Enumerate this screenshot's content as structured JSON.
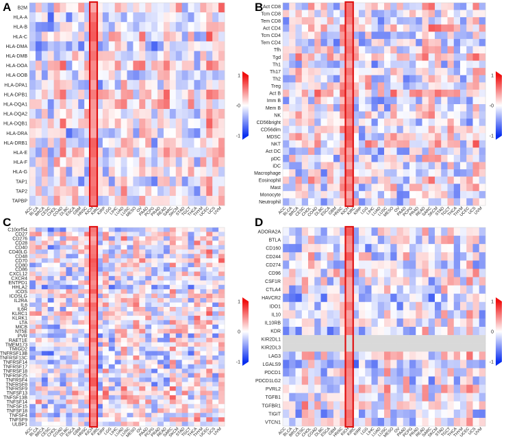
{
  "figure": {
    "colors": {
      "low": "#0a2ff0",
      "mid": "#ffffff",
      "high": "#f01010",
      "na": "#d9d9d9",
      "highlight": "#e01010",
      "grid": "#ffffff"
    }
  },
  "chart_data": [
    {
      "type": "heatmap",
      "panel": "A",
      "title": "",
      "rows": [
        "B2M",
        "HLA-A",
        "HLA-B",
        "HLA-C",
        "HLA-DMA",
        "HLA-DMB",
        "HLA-DOA",
        "HLA-DOB",
        "HLA-DPA1",
        "HLA-DPB1",
        "HLA-DQA1",
        "HLA-DQA2",
        "HLA-DQB1",
        "HLA-DRA",
        "HLA-DRB1",
        "HLA-E",
        "HLA-F",
        "HLA-G",
        "TAP1",
        "TAP2",
        "TAPBP"
      ],
      "columns": [
        "ACC",
        "BLCA",
        "BRCA",
        "CESC",
        "CHOL",
        "COAD",
        "DLBC",
        "ESCA",
        "GBM",
        "HNSC",
        "KICH",
        "KIRC",
        "KIRP",
        "LGG",
        "LIHC",
        "LUAD",
        "LUSC",
        "MESO",
        "OV",
        "PAAD",
        "PCPG",
        "PRAD",
        "READ",
        "SARC",
        "SKCM",
        "STAD",
        "TGCT",
        "THCA",
        "THYM",
        "UCEC",
        "UCS",
        "UVM"
      ],
      "highlight_column": "KICH",
      "colorbar": {
        "ticks": [
          "1",
          "-0",
          "-1"
        ],
        "range": [
          -1,
          1
        ]
      },
      "seed": 11
    },
    {
      "type": "heatmap",
      "panel": "B",
      "title": "",
      "rows": [
        "Act CD8",
        "Tcm CD8",
        "Tem CD8",
        "Act CD4",
        "Tcm CD4",
        "Tem CD4",
        "Tfh",
        "Tgd",
        "Th1",
        "Th17",
        "Th2",
        "Treg",
        "Act B",
        "Imm B",
        "Mem B",
        "NK",
        "CD56bright",
        "CD56dim",
        "MDSC",
        "NKT",
        "Act DC",
        "pDC",
        "iDC",
        "Macrophage",
        "Eosinophil",
        "Mast",
        "Monocyte",
        "Neutrophil"
      ],
      "columns": [
        "ACC",
        "BLCA",
        "BRCA",
        "CESC",
        "CHOL",
        "COAD",
        "DLBC",
        "ESCA",
        "GBM",
        "HNSC",
        "KICH",
        "KIRC",
        "KIRP",
        "LGG",
        "LIHC",
        "LUAD",
        "LUSC",
        "MESO",
        "OV",
        "PAAD",
        "PCPG",
        "PRAD",
        "READ",
        "SARC",
        "SKCM",
        "STAD",
        "TGCT",
        "THCA",
        "THYM",
        "UCEC",
        "UCS",
        "UVM"
      ],
      "highlight_column": "KICH",
      "colorbar": {
        "ticks": [
          "1",
          "-0",
          "-1"
        ],
        "range": [
          -1,
          1
        ]
      },
      "seed": 23
    },
    {
      "type": "heatmap",
      "panel": "C",
      "title": "",
      "rows": [
        "C10orf54",
        "CD27",
        "CD276",
        "CD28",
        "CD40",
        "CD40LG",
        "CD48",
        "CD70",
        "CD80",
        "CD86",
        "CXCL12",
        "CXCR4",
        "ENTPD1",
        "HHLA2",
        "ICOS",
        "ICOSLG",
        "IL2RA",
        "IL6",
        "IL6R",
        "KLRC1",
        "KLRK1",
        "LTA",
        "MICB",
        "NT5E",
        "PVR",
        "RAET1E",
        "TMEM173",
        "TMIGD2",
        "TNFRSF13B",
        "TNFRSF13C",
        "TNFRSF14",
        "TNFRSF17",
        "TNFRSF18",
        "TNFRSF25",
        "TNFRSF4",
        "TNFRSF8",
        "TNFRSF9",
        "TNFSF13",
        "TNFSF13B",
        "TNFSF14",
        "TNFSF15",
        "TNFSF18",
        "TNFSF4",
        "TNFSF9",
        "ULBP1"
      ],
      "columns": [
        "ACC",
        "BLCA",
        "BRCA",
        "CESC",
        "CHOL",
        "COAD",
        "DLBC",
        "ESCA",
        "GBM",
        "HNSC",
        "KICH",
        "KIRC",
        "KIRP",
        "LGG",
        "LIHC",
        "LUAD",
        "LUSC",
        "MESO",
        "OV",
        "PAAD",
        "PCPG",
        "PRAD",
        "READ",
        "SARC",
        "SKCM",
        "STAD",
        "TGCT",
        "THCA",
        "THYM",
        "UCEC",
        "UCS",
        "UVM"
      ],
      "highlight_column": "KICH",
      "colorbar": {
        "ticks": [
          "1",
          "0",
          "-1"
        ],
        "range": [
          -1,
          1
        ]
      },
      "seed": 37
    },
    {
      "type": "heatmap",
      "panel": "D",
      "title": "",
      "rows": [
        "ADORA2A",
        "BTLA",
        "CD160",
        "CD244",
        "CD274",
        "CD96",
        "CSF1R",
        "CTLA4",
        "HAVCR2",
        "IDO1",
        "IL10",
        "IL10RB",
        "KDR",
        "KIR2DL1",
        "KIR2DL3",
        "LAG3",
        "LGALS9",
        "PDCD1",
        "PDCD1LG2",
        "PVRL2",
        "TGFB1",
        "TGFBR1",
        "TIGIT",
        "VTCN1"
      ],
      "columns": [
        "ACC",
        "BLCA",
        "BRCA",
        "CESC",
        "CHOL",
        "COAD",
        "DLBC",
        "ESCA",
        "GBM",
        "HNSC",
        "KICH",
        "KIRC",
        "KIRP",
        "LGG",
        "LIHC",
        "LUAD",
        "LUSC",
        "MESO",
        "OV",
        "PAAD",
        "PCPG",
        "PRAD",
        "READ",
        "SARC",
        "SKCM",
        "STAD",
        "TGCT",
        "THCA",
        "THYM",
        "UCEC",
        "UCS",
        "UVM"
      ],
      "highlight_column": "KICH",
      "colorbar": {
        "ticks": [
          "1",
          "0",
          "-1"
        ],
        "range": [
          -1,
          1
        ]
      },
      "seed": 53,
      "na_rows": [
        "KIR2DL1",
        "KIR2DL3"
      ]
    }
  ]
}
